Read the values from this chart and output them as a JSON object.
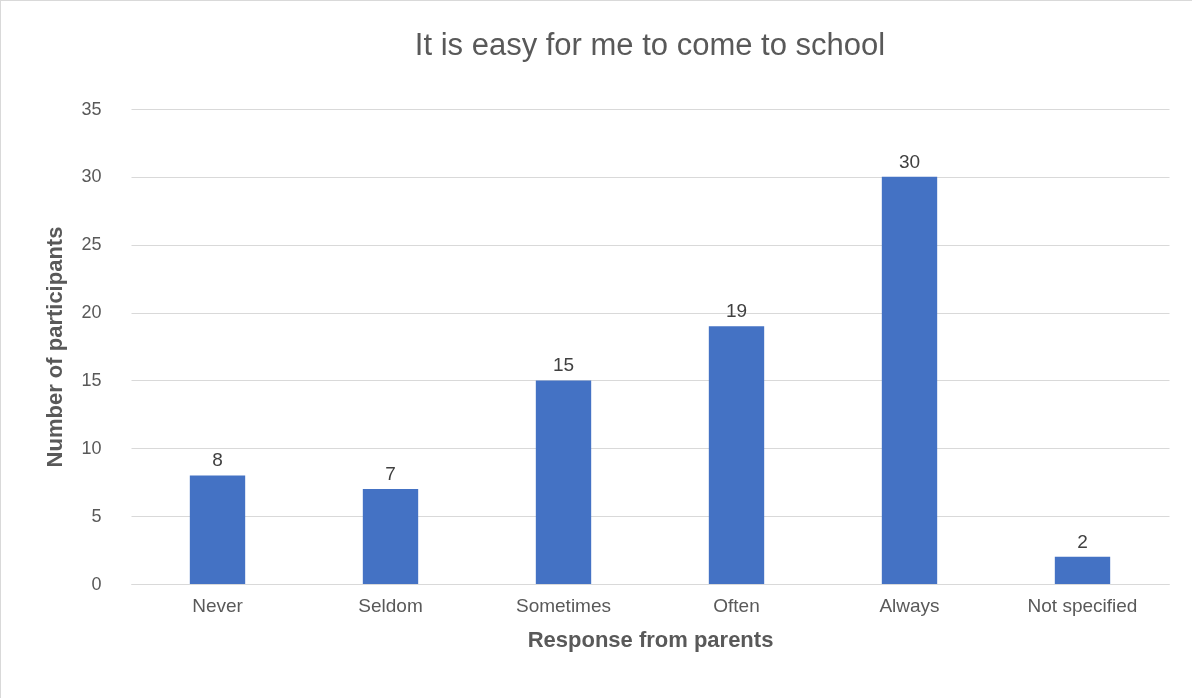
{
  "chart_data": {
    "type": "bar",
    "title": "It is easy for me to come to school",
    "xlabel": "Response from parents",
    "ylabel": "Number of participants",
    "categories": [
      "Never",
      "Seldom",
      "Sometimes",
      "Often",
      "Always",
      "Not specified"
    ],
    "values": [
      8,
      7,
      15,
      19,
      30,
      2
    ],
    "color": "#4472c4",
    "ylim": [
      0,
      35
    ],
    "yticks": [
      0,
      5,
      10,
      15,
      20,
      25,
      30,
      35
    ],
    "grid": "y",
    "data_labels": true
  }
}
